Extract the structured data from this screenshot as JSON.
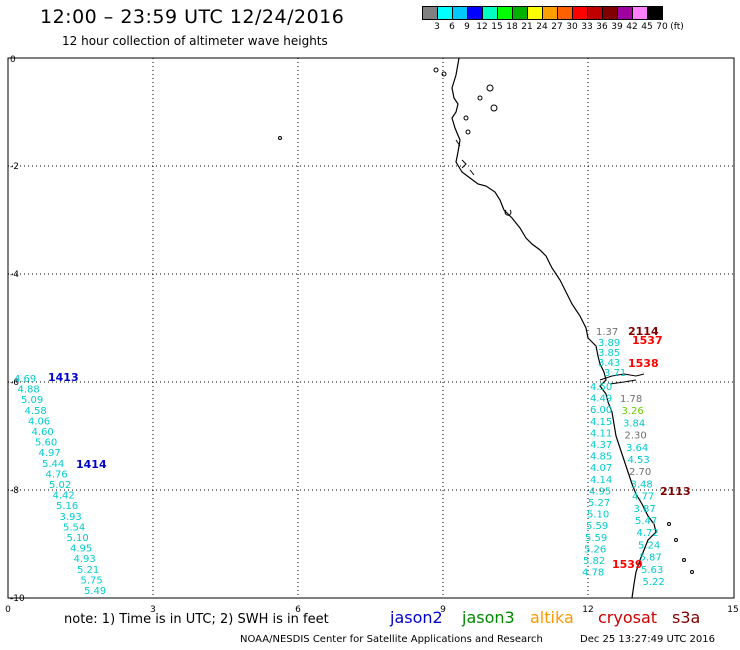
{
  "header": {
    "title": "12:00 – 23:59 UTC 12/24/2016",
    "subtitle": "12 hour collection of altimeter wave heights"
  },
  "colorbar": {
    "colors": [
      "#808080",
      "#00ffff",
      "#00c8ff",
      "#0000ff",
      "#00ffc0",
      "#00ff00",
      "#00b000",
      "#ffff00",
      "#ffa000",
      "#ff6000",
      "#ff0000",
      "#c00000",
      "#800000",
      "#a000a0",
      "#ff80ff",
      "#000000"
    ],
    "labels": [
      "3",
      "6",
      "9",
      "12",
      "15",
      "18",
      "21",
      "24",
      "27",
      "30",
      "33",
      "36",
      "39",
      "42",
      "45",
      "70",
      "(ft)"
    ]
  },
  "axes": {
    "x_ticks": [
      "0",
      "3",
      "6",
      "9",
      "12",
      "15"
    ],
    "y_ticks": [
      "0",
      "-2",
      "-4",
      "-6",
      "-8",
      "-10"
    ]
  },
  "tracks": [
    {
      "id": "1413",
      "color": "#00cccc",
      "labelColor": "#0000cc",
      "values": [
        "4.69",
        "4.88",
        "5.09",
        "4.58",
        "4.06",
        "4.60",
        "5.60",
        "4.97",
        "5.44",
        "4.76",
        "5.02",
        "4.42",
        "5.16",
        "3.93",
        "5.54",
        "5.10",
        "4.95",
        "4.93",
        "5.21",
        "5.75",
        "5.49"
      ]
    },
    {
      "id": "1414",
      "color": "#00cccc",
      "labelColor": "#0000cc",
      "values": []
    },
    {
      "id": "2114",
      "color": "#00cccc",
      "labelColor": "#800000",
      "values": [
        "1.37",
        "3.89",
        "3.85",
        "3.43",
        "3.71"
      ]
    },
    {
      "id": "1537",
      "color": "#00cccc",
      "labelColor": "#ff0000",
      "values": []
    },
    {
      "id": "1538",
      "color": "#00cccc",
      "labelColor": "#ff0000",
      "values": [
        "1.78",
        "3.26",
        "3.84",
        "2.30",
        "3.64",
        "4.53",
        "2.70",
        "3.48",
        "4.77",
        "3.87",
        "5.47",
        "4.72",
        "5.24",
        "5.87",
        "5.63",
        "5.22"
      ]
    },
    {
      "id": "west_coast_list",
      "color": "#00cccc",
      "labelColor": "#00cccc",
      "values": [
        "4.50",
        "4.49",
        "6.00",
        "4.15",
        "4.11",
        "4.37",
        "4.85",
        "4.07",
        "4.14",
        "4.95",
        "5.27",
        "5.10",
        "5.59",
        "5.59",
        "5.26",
        "5.82",
        "4.78"
      ]
    },
    {
      "id": "2113",
      "color": "#00cccc",
      "labelColor": "#800000",
      "values": []
    },
    {
      "id": "1539",
      "color": "#00cccc",
      "labelColor": "#ff0000",
      "values": []
    }
  ],
  "footer": {
    "note": "note: 1) Time is in UTC; 2) SWH is in feet",
    "legend": [
      {
        "label": "jason2",
        "color": "#0000cc"
      },
      {
        "label": "jason3",
        "color": "#008800"
      },
      {
        "label": "altika",
        "color": "#ff9900"
      },
      {
        "label": "cryosat",
        "color": "#cc0000"
      },
      {
        "label": "s3a",
        "color": "#800000"
      }
    ],
    "credit": "NOAA/NESDIS Center for Satellite Applications and Research",
    "timestamp": "Dec 25 13:27:49 UTC 2016"
  }
}
